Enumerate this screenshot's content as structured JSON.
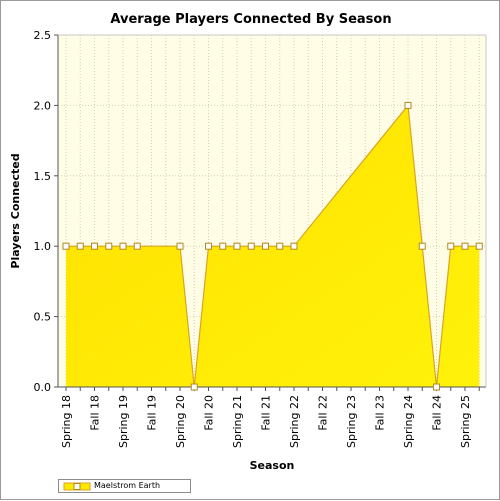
{
  "chart_data": {
    "type": "area",
    "title": "Average Players Connected By Season",
    "xlabel": "Season",
    "ylabel": "Players Connected",
    "ylim": [
      0,
      2.5
    ],
    "yticks": [
      "0.0",
      "0.5",
      "1.0",
      "1.5",
      "2.0",
      "2.5"
    ],
    "categories": [
      "Spring 18",
      "Fall 18",
      "Spring 19",
      "Fall 19",
      "Spring 20",
      "Fall 20",
      "Spring 21",
      "Fall 21",
      "Spring 22",
      "Fall 22",
      "Spring 23",
      "Fall 23",
      "Spring 24",
      "Fall 24",
      "Spring 25"
    ],
    "grid": true,
    "legend_position": "bottom-left",
    "series": [
      {
        "name": "Maelstrom Earth",
        "color": "#ffe800",
        "line_color": "#d9a520",
        "points": [
          {
            "x": 0.0,
            "y": 1.0
          },
          {
            "x": 0.5,
            "y": 1.0
          },
          {
            "x": 1.0,
            "y": 1.0
          },
          {
            "x": 1.5,
            "y": 1.0
          },
          {
            "x": 2.0,
            "y": 1.0
          },
          {
            "x": 2.5,
            "y": 1.0
          },
          {
            "x": 4.0,
            "y": 1.0
          },
          {
            "x": 4.5,
            "y": 0.0
          },
          {
            "x": 5.0,
            "y": 1.0
          },
          {
            "x": 5.5,
            "y": 1.0
          },
          {
            "x": 6.0,
            "y": 1.0
          },
          {
            "x": 6.5,
            "y": 1.0
          },
          {
            "x": 7.0,
            "y": 1.0
          },
          {
            "x": 7.5,
            "y": 1.0
          },
          {
            "x": 8.0,
            "y": 1.0
          },
          {
            "x": 12.0,
            "y": 2.0
          },
          {
            "x": 12.5,
            "y": 1.0
          },
          {
            "x": 13.0,
            "y": 0.0
          },
          {
            "x": 13.5,
            "y": 1.0
          },
          {
            "x": 14.0,
            "y": 1.0
          },
          {
            "x": 14.5,
            "y": 1.0
          }
        ]
      }
    ]
  }
}
